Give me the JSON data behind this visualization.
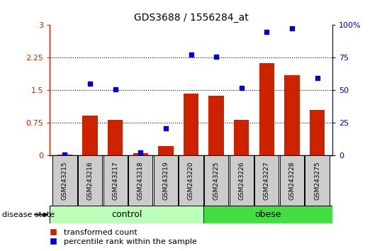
{
  "title": "GDS3688 / 1556284_at",
  "samples": [
    "GSM243215",
    "GSM243216",
    "GSM243217",
    "GSM243218",
    "GSM243219",
    "GSM243220",
    "GSM243225",
    "GSM243226",
    "GSM243227",
    "GSM243228",
    "GSM243275"
  ],
  "transformed_count": [
    0.03,
    0.92,
    0.82,
    0.05,
    0.22,
    1.42,
    1.38,
    0.82,
    2.12,
    1.85,
    1.05
  ],
  "percentile_rank_left": [
    0.02,
    1.65,
    1.53,
    0.08,
    0.62,
    2.32,
    2.27,
    1.55,
    2.85,
    2.92,
    1.78
  ],
  "groups": [
    "control",
    "control",
    "control",
    "control",
    "control",
    "control",
    "obese",
    "obese",
    "obese",
    "obese",
    "obese"
  ],
  "control_color": "#bbffbb",
  "obese_color": "#44dd44",
  "bar_color": "#cc2200",
  "dot_color": "#0000cc",
  "tick_box_color": "#cccccc",
  "ylim_left": [
    0,
    3
  ],
  "ylim_right": [
    0,
    100
  ],
  "yticks_left": [
    0,
    0.75,
    1.5,
    2.25,
    3
  ],
  "yticks_right": [
    0,
    25,
    50,
    75,
    100
  ],
  "ytick_labels_left": [
    "0",
    "0.75",
    "1.5",
    "2.25",
    "3"
  ],
  "ytick_labels_right": [
    "0",
    "25",
    "50",
    "75",
    "100%"
  ],
  "legend_labels": [
    "transformed count",
    "percentile rank within the sample"
  ],
  "disease_state_label": "disease state",
  "figsize": [
    5.39,
    3.54
  ],
  "dpi": 100
}
